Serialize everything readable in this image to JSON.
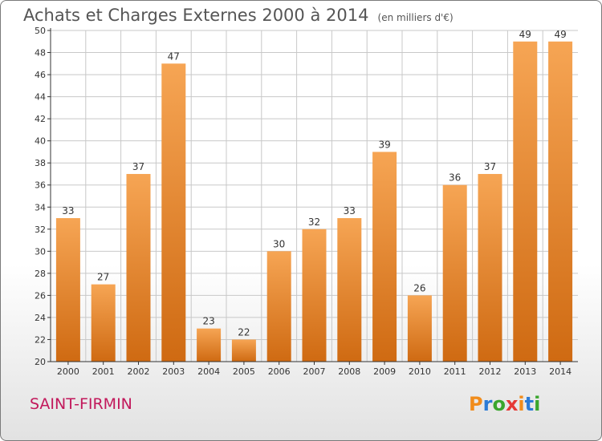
{
  "title": "Achats et Charges Externes 2000 à 2014",
  "unit": "(en milliers d'€)",
  "region": "SAINT-FIRMIN",
  "logo": {
    "text": "Proxiti",
    "colors": [
      "#f18c1b",
      "#2b7bd6",
      "#3aa62d",
      "#e53935",
      "#f18c1b",
      "#2b7bd6",
      "#3aa62d"
    ]
  },
  "colors": {
    "bar_top": "#f6a554",
    "bar_bottom": "#cf6a12",
    "axis": "#333333",
    "grid": "#c8c8c8",
    "text": "#333333"
  },
  "chart_data": {
    "type": "bar",
    "categories": [
      "2000",
      "2001",
      "2002",
      "2003",
      "2004",
      "2005",
      "2006",
      "2007",
      "2008",
      "2009",
      "2010",
      "2011",
      "2012",
      "2013",
      "2014"
    ],
    "values": [
      33,
      27,
      37,
      47,
      23,
      22,
      30,
      32,
      33,
      39,
      26,
      36,
      37,
      49,
      49
    ],
    "ylim": [
      20,
      50
    ],
    "yticks": [
      20,
      22,
      24,
      26,
      28,
      30,
      32,
      34,
      36,
      38,
      40,
      42,
      44,
      46,
      48,
      50
    ],
    "grid": true,
    "xlabel": "",
    "ylabel": ""
  }
}
